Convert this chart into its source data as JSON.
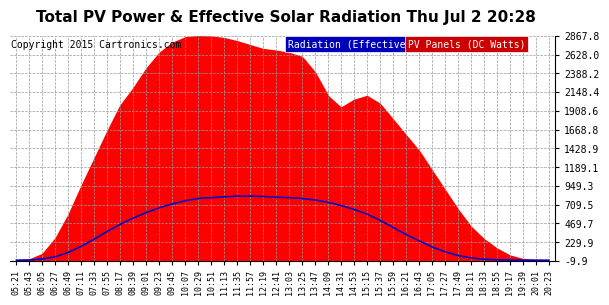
{
  "title": "Total PV Power & Effective Solar Radiation Thu Jul 2 20:28",
  "copyright": "Copyright 2015 Cartronics.com",
  "legend_label1": "Radiation (Effective w/m2)",
  "legend_label2": "PV Panels (DC Watts)",
  "legend_color1": "#0000bb",
  "legend_color2": "#cc0000",
  "legend_text_color": "#ffffff",
  "y_ticks": [
    -9.9,
    229.9,
    469.7,
    709.5,
    949.3,
    1189.1,
    1428.9,
    1668.8,
    1908.6,
    2148.4,
    2388.2,
    2628.0,
    2867.8
  ],
  "y_min": -9.9,
  "y_max": 2867.8,
  "background_color": "#ffffff",
  "grid_color": "#999999",
  "title_fontsize": 11,
  "copyright_fontsize": 7,
  "x_tick_labels": [
    "05:21",
    "05:43",
    "06:05",
    "06:27",
    "06:49",
    "07:11",
    "07:33",
    "07:55",
    "08:17",
    "08:39",
    "09:01",
    "09:23",
    "09:45",
    "10:07",
    "10:29",
    "10:51",
    "11:13",
    "11:35",
    "11:57",
    "12:19",
    "12:41",
    "13:03",
    "13:25",
    "13:47",
    "14:09",
    "14:31",
    "14:53",
    "15:15",
    "15:37",
    "15:59",
    "16:21",
    "16:43",
    "17:05",
    "17:27",
    "17:49",
    "18:11",
    "18:33",
    "18:55",
    "19:17",
    "19:39",
    "20:01",
    "20:23"
  ],
  "pv_color": "#ff0000",
  "radiation_color": "#0000cc",
  "radiation_linewidth": 1.2,
  "pv_values": [
    0,
    10,
    80,
    280,
    580,
    950,
    1300,
    1650,
    1980,
    2200,
    2450,
    2650,
    2780,
    2850,
    2867,
    2860,
    2840,
    2800,
    2750,
    2700,
    2680,
    2650,
    2600,
    2400,
    2100,
    1950,
    2050,
    2100,
    2000,
    1800,
    1600,
    1400,
    1150,
    900,
    650,
    430,
    270,
    150,
    60,
    15,
    2,
    0
  ],
  "rad_values": [
    0,
    2,
    15,
    45,
    100,
    180,
    270,
    370,
    460,
    540,
    610,
    670,
    720,
    760,
    790,
    800,
    810,
    820,
    820,
    815,
    805,
    800,
    790,
    770,
    740,
    700,
    650,
    590,
    510,
    420,
    330,
    250,
    170,
    110,
    60,
    30,
    12,
    5,
    1,
    0,
    0,
    0
  ]
}
